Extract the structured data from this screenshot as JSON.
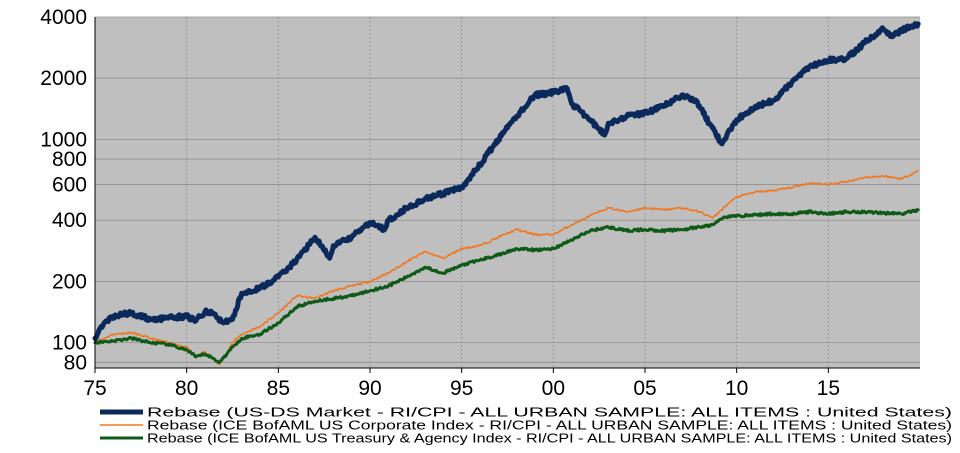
{
  "chart_data": {
    "type": "line",
    "title": "",
    "xlabel": "",
    "ylabel": "",
    "y_scale": "log",
    "ylim": [
      75,
      4000
    ],
    "xlim": [
      1975,
      2020
    ],
    "grid": true,
    "background_color": "#bfbfbf",
    "legend_position": "bottom",
    "x_ticks": [
      1975,
      1980,
      1985,
      1990,
      1995,
      2000,
      2005,
      2010,
      2015
    ],
    "x_tick_labels": [
      "75",
      "80",
      "85",
      "90",
      "95",
      "00",
      "05",
      "10",
      "15"
    ],
    "y_ticks": [
      80,
      100,
      200,
      400,
      600,
      800,
      1000,
      2000,
      4000
    ],
    "y_tick_labels": [
      "80",
      "100",
      "200",
      "400",
      "600",
      "800",
      "1000",
      "2000",
      "4000"
    ],
    "series": [
      {
        "name": "Rebase (US-DS Market - RI/CPI - ALL URBAN SAMPLE: ALL ITEMS : United States)",
        "color": "#0b2a5b",
        "stroke": "thick",
        "x": [
          1975,
          1975.5,
          1976,
          1977,
          1978,
          1979,
          1980,
          1980.5,
          1981,
          1981.5,
          1982,
          1982.5,
          1983,
          1984,
          1985,
          1986,
          1987,
          1987.8,
          1988,
          1989,
          1990,
          1990.8,
          1991,
          1992,
          1993,
          1994,
          1995,
          1996,
          1997,
          1998,
          1999,
          2000,
          2000.7,
          2001,
          2002,
          2002.8,
          2003,
          2004,
          2005,
          2006,
          2007,
          2007.8,
          2008.5,
          2009.2,
          2010,
          2011,
          2012,
          2013,
          2014,
          2015,
          2016,
          2017,
          2018,
          2018.5,
          2019,
          2019.9
        ],
        "values": [
          105,
          125,
          135,
          140,
          130,
          132,
          135,
          128,
          142,
          138,
          125,
          130,
          175,
          185,
          210,
          255,
          330,
          260,
          300,
          330,
          390,
          360,
          400,
          460,
          510,
          540,
          580,
          750,
          1000,
          1300,
          1650,
          1700,
          1800,
          1500,
          1250,
          1050,
          1200,
          1300,
          1350,
          1450,
          1650,
          1550,
          1200,
          950,
          1250,
          1450,
          1550,
          1900,
          2300,
          2450,
          2500,
          3000,
          3500,
          3200,
          3450,
          3700
        ]
      },
      {
        "name": "Rebase (ICE BofAML US Corporate Index - RI/CPI - ALL URBAN SAMPLE: ALL ITEMS : United States)",
        "color": "#f07820",
        "stroke": "thin",
        "x": [
          1975,
          1976,
          1977,
          1978,
          1979,
          1980,
          1980.5,
          1981,
          1981.8,
          1982.5,
          1983,
          1984,
          1985,
          1986,
          1987,
          1988,
          1989,
          1990,
          1991,
          1992,
          1993,
          1994,
          1995,
          1996,
          1997,
          1998,
          1999,
          2000,
          2001,
          2002,
          2003,
          2004,
          2005,
          2006,
          2007,
          2008,
          2008.7,
          2009.5,
          2010,
          2011,
          2012,
          2013,
          2014,
          2015,
          2016,
          2017,
          2018,
          2019,
          2019.9
        ],
        "values": [
          100,
          110,
          112,
          105,
          100,
          95,
          85,
          90,
          78,
          100,
          110,
          120,
          140,
          170,
          165,
          180,
          190,
          200,
          220,
          250,
          280,
          260,
          290,
          300,
          330,
          360,
          340,
          340,
          380,
          420,
          460,
          440,
          460,
          450,
          460,
          440,
          410,
          480,
          520,
          550,
          560,
          580,
          610,
          600,
          620,
          650,
          660,
          640,
          700
        ]
      },
      {
        "name": "Rebase (ICE BofAML US Treasury & Agency Index - RI/CPI - ALL URBAN SAMPLE: ALL ITEMS : United States)",
        "color": "#0e5a16",
        "stroke": "medium",
        "x": [
          1975,
          1976,
          1977,
          1978,
          1979,
          1980,
          1980.5,
          1981,
          1981.8,
          1982.5,
          1983,
          1984,
          1985,
          1986,
          1987,
          1988,
          1989,
          1990,
          1991,
          1992,
          1993,
          1994,
          1995,
          1996,
          1997,
          1998,
          1999,
          2000,
          2001,
          2002,
          2003,
          2004,
          2005,
          2006,
          2007,
          2008,
          2008.7,
          2009.3,
          2010,
          2011,
          2012,
          2013,
          2014,
          2015,
          2016,
          2017,
          2018,
          2019,
          2019.9
        ],
        "values": [
          100,
          102,
          105,
          100,
          98,
          92,
          85,
          88,
          80,
          95,
          105,
          110,
          125,
          150,
          160,
          165,
          170,
          180,
          190,
          210,
          235,
          220,
          240,
          255,
          270,
          290,
          285,
          290,
          320,
          355,
          370,
          355,
          360,
          355,
          360,
          370,
          380,
          415,
          420,
          425,
          430,
          430,
          440,
          430,
          440,
          440,
          435,
          430,
          450
        ]
      }
    ]
  }
}
